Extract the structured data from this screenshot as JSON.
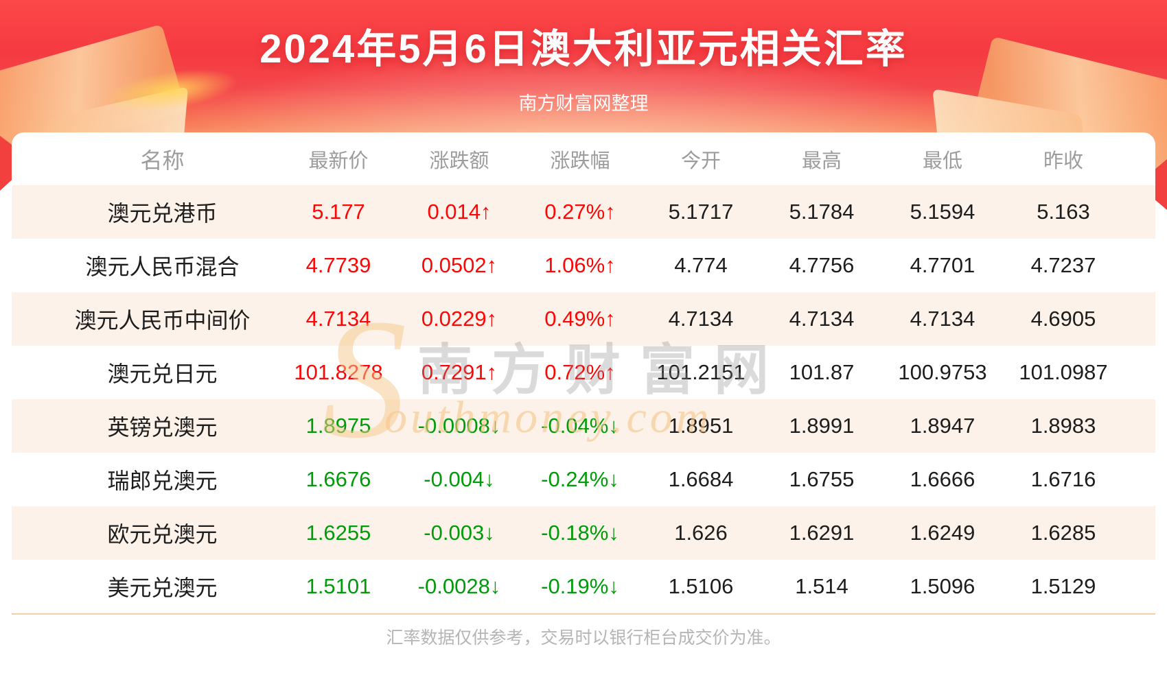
{
  "header": {
    "title": "2024年5月6日澳大利亚元相关汇率",
    "subtitle": "南方财富网整理"
  },
  "chart_data": {
    "type": "table",
    "title": "2024年5月6日澳大利亚元相关汇率",
    "columns": [
      "名称",
      "最新价",
      "涨跌额",
      "涨跌幅",
      "今开",
      "最高",
      "最低",
      "昨收"
    ],
    "up_arrow": "↑",
    "down_arrow": "↓",
    "rows": [
      {
        "name": "澳元兑港币",
        "last": "5.177",
        "change": "0.014",
        "change_pct": "0.27%",
        "direction": "up",
        "open": "5.1717",
        "high": "5.1784",
        "low": "5.1594",
        "prev_close": "5.163"
      },
      {
        "name": "澳元人民币混合",
        "last": "4.7739",
        "change": "0.0502",
        "change_pct": "1.06%",
        "direction": "up",
        "open": "4.774",
        "high": "4.7756",
        "low": "4.7701",
        "prev_close": "4.7237"
      },
      {
        "name": "澳元人民币中间价",
        "last": "4.7134",
        "change": "0.0229",
        "change_pct": "0.49%",
        "direction": "up",
        "open": "4.7134",
        "high": "4.7134",
        "low": "4.7134",
        "prev_close": "4.6905"
      },
      {
        "name": "澳元兑日元",
        "last": "101.8278",
        "change": "0.7291",
        "change_pct": "0.72%",
        "direction": "up",
        "open": "101.2151",
        "high": "101.87",
        "low": "100.9753",
        "prev_close": "101.0987"
      },
      {
        "name": "英镑兑澳元",
        "last": "1.8975",
        "change": "-0.0008",
        "change_pct": "-0.04%",
        "direction": "down",
        "open": "1.8951",
        "high": "1.8991",
        "low": "1.8947",
        "prev_close": "1.8983"
      },
      {
        "name": "瑞郎兑澳元",
        "last": "1.6676",
        "change": "-0.004",
        "change_pct": "-0.24%",
        "direction": "down",
        "open": "1.6684",
        "high": "1.6755",
        "low": "1.6666",
        "prev_close": "1.6716"
      },
      {
        "name": "欧元兑澳元",
        "last": "1.6255",
        "change": "-0.003",
        "change_pct": "-0.18%",
        "direction": "down",
        "open": "1.626",
        "high": "1.6291",
        "low": "1.6249",
        "prev_close": "1.6285"
      },
      {
        "name": "美元兑澳元",
        "last": "1.5101",
        "change": "-0.0028",
        "change_pct": "-0.19%",
        "direction": "down",
        "open": "1.5106",
        "high": "1.514",
        "low": "1.5096",
        "prev_close": "1.5129"
      }
    ]
  },
  "watermark": {
    "initial": "S",
    "cn": "南方财富网",
    "en": "outhmoney.com"
  },
  "footer": {
    "note": "汇率数据仅供参考，交易时以银行柜台成交价为准。"
  },
  "colors": {
    "up": "#fe0606",
    "down": "#009b09",
    "alt_row": "#fcf2e9",
    "header_text": "#9c9c9c",
    "cell_text": "#1d1d1d",
    "divider": "#f5cfa1",
    "footer_text": "#b5b5b5",
    "banner_red": "#f53a41",
    "banner_orange": "#f9a872"
  }
}
